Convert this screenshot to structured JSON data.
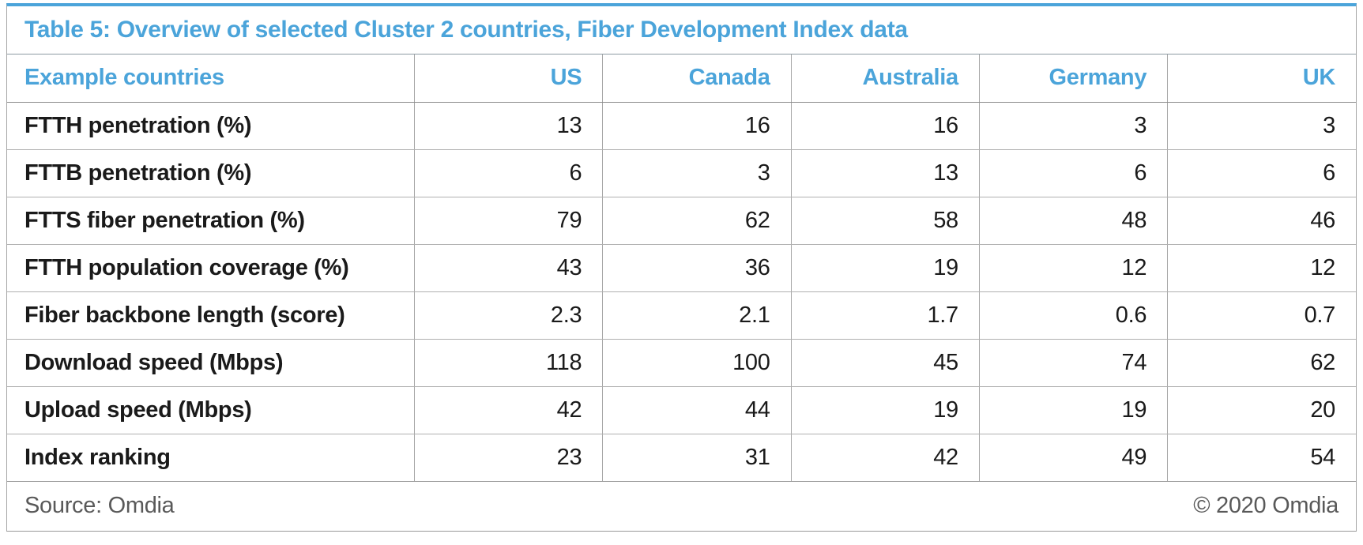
{
  "title": "Table 5: Overview of selected Cluster 2 countries, Fiber Development Index data",
  "colors": {
    "accent_blue": "#4ba4da",
    "border_gray": "#a6a6a6",
    "text_dark": "#1a1a1a",
    "footer_gray": "#595959",
    "background": "#ffffff"
  },
  "chart_data": {
    "type": "table",
    "title": "Table 5: Overview of selected Cluster 2 countries, Fiber Development Index data",
    "columns": [
      "Example countries",
      "US",
      "Canada",
      "Australia",
      "Germany",
      "UK"
    ],
    "rows": [
      [
        "FTTH penetration (%)",
        13,
        16,
        16,
        3,
        3
      ],
      [
        "FTTB penetration (%)",
        6,
        3,
        13,
        6,
        6
      ],
      [
        "FTTS fiber penetration (%)",
        79,
        62,
        58,
        48,
        46
      ],
      [
        "FTTH population coverage (%)",
        43,
        36,
        19,
        12,
        12
      ],
      [
        "Fiber backbone length (score)",
        2.3,
        2.1,
        1.7,
        0.6,
        0.7
      ],
      [
        "Download speed (Mbps)",
        118,
        100,
        45,
        74,
        62
      ],
      [
        "Upload speed (Mbps)",
        42,
        44,
        19,
        19,
        20
      ],
      [
        "Index ranking",
        23,
        31,
        42,
        49,
        54
      ]
    ]
  },
  "table": {
    "header": {
      "label": "Example countries",
      "countries": [
        "US",
        "Canada",
        "Australia",
        "Germany",
        "UK"
      ]
    },
    "rows": [
      {
        "label": "FTTH penetration (%)",
        "values": [
          "13",
          "16",
          "16",
          "3",
          "3"
        ]
      },
      {
        "label": "FTTB penetration (%)",
        "values": [
          "6",
          "3",
          "13",
          "6",
          "6"
        ]
      },
      {
        "label": "FTTS fiber penetration (%)",
        "values": [
          "79",
          "62",
          "58",
          "48",
          "46"
        ]
      },
      {
        "label": "FTTH population coverage (%)",
        "values": [
          "43",
          "36",
          "19",
          "12",
          "12"
        ]
      },
      {
        "label": "Fiber backbone length (score)",
        "values": [
          "2.3",
          "2.1",
          "1.7",
          "0.6",
          "0.7"
        ]
      },
      {
        "label": "Download speed (Mbps)",
        "values": [
          "118",
          "100",
          "45",
          "74",
          "62"
        ]
      },
      {
        "label": "Upload speed (Mbps)",
        "values": [
          "42",
          "44",
          "19",
          "19",
          "20"
        ]
      },
      {
        "label": "Index ranking",
        "values": [
          "23",
          "31",
          "42",
          "49",
          "54"
        ]
      }
    ]
  },
  "footer": {
    "source": "Source: Omdia",
    "copyright": "© 2020 Omdia"
  }
}
